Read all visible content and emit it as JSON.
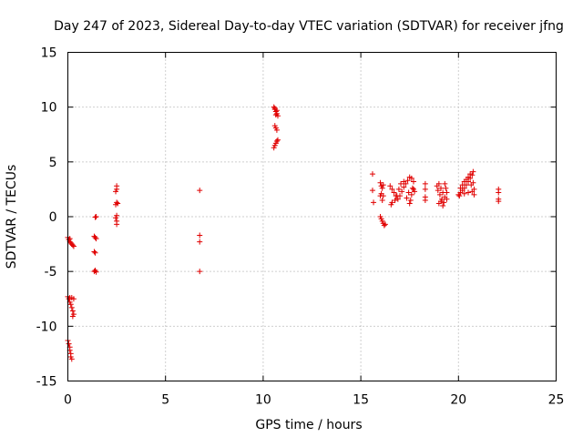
{
  "chart_data": {
    "type": "scatter",
    "title": "Day 247 of 2023, Sidereal Day-to-day VTEC variation (SDTVAR) for receiver jfng",
    "xlabel": "GPS time / hours",
    "ylabel": "SDTVAR / TECUs",
    "xlim": [
      0,
      25
    ],
    "ylim": [
      -15,
      15
    ],
    "xticks": [
      0,
      5,
      10,
      15,
      20,
      25
    ],
    "yticks": [
      -15,
      -10,
      -5,
      0,
      5,
      10,
      15
    ],
    "xtick_labels": [
      "0",
      "5",
      "10",
      "15",
      "20",
      "25"
    ],
    "ytick_labels": [
      "-15",
      "-10",
      "-5",
      "0",
      "5",
      "10",
      "15"
    ],
    "grid": true,
    "marker": "+",
    "marker_color": "#e00000",
    "series": [
      {
        "name": "SDTVAR",
        "points": [
          [
            0.0,
            -1.9
          ],
          [
            0.05,
            -2.1
          ],
          [
            0.1,
            -2.3
          ],
          [
            0.15,
            -2.4
          ],
          [
            0.2,
            -2.5
          ],
          [
            0.25,
            -2.6
          ],
          [
            0.3,
            -2.7
          ],
          [
            0.1,
            -2.0
          ],
          [
            0.0,
            -7.3
          ],
          [
            0.05,
            -7.5
          ],
          [
            0.1,
            -7.8
          ],
          [
            0.15,
            -8.0
          ],
          [
            0.2,
            -8.3
          ],
          [
            0.25,
            -8.6
          ],
          [
            0.3,
            -8.9
          ],
          [
            0.1,
            -7.4
          ],
          [
            0.2,
            -7.4
          ],
          [
            0.3,
            -7.5
          ],
          [
            0.25,
            -9.1
          ],
          [
            0.0,
            -11.3
          ],
          [
            0.05,
            -11.6
          ],
          [
            0.1,
            -11.9
          ],
          [
            0.1,
            -12.2
          ],
          [
            0.15,
            -12.5
          ],
          [
            0.15,
            -12.8
          ],
          [
            0.2,
            -13.0
          ],
          [
            1.4,
            -0.05
          ],
          [
            1.45,
            0.0
          ],
          [
            1.35,
            -1.8
          ],
          [
            1.4,
            -1.9
          ],
          [
            1.45,
            -2.0
          ],
          [
            1.35,
            -3.2
          ],
          [
            1.4,
            -3.3
          ],
          [
            1.35,
            -5.0
          ],
          [
            1.4,
            -4.9
          ],
          [
            1.45,
            -5.05
          ],
          [
            2.5,
            2.8
          ],
          [
            2.5,
            2.5
          ],
          [
            2.45,
            2.3
          ],
          [
            2.5,
            1.3
          ],
          [
            2.45,
            1.1
          ],
          [
            2.55,
            1.2
          ],
          [
            2.5,
            0.1
          ],
          [
            2.45,
            -0.1
          ],
          [
            2.5,
            -0.4
          ],
          [
            2.5,
            -0.7
          ],
          [
            6.75,
            2.4
          ],
          [
            6.75,
            -1.7
          ],
          [
            6.75,
            -2.3
          ],
          [
            6.75,
            -5.0
          ],
          [
            10.55,
            10.0
          ],
          [
            10.6,
            9.8
          ],
          [
            10.65,
            9.6
          ],
          [
            10.7,
            9.4
          ],
          [
            10.75,
            9.2
          ],
          [
            10.6,
            9.9
          ],
          [
            10.7,
            9.7
          ],
          [
            10.65,
            9.3
          ],
          [
            10.6,
            8.3
          ],
          [
            10.65,
            8.1
          ],
          [
            10.7,
            7.9
          ],
          [
            10.55,
            6.3
          ],
          [
            10.6,
            6.5
          ],
          [
            10.65,
            6.7
          ],
          [
            10.7,
            6.9
          ],
          [
            10.75,
            7.0
          ],
          [
            15.6,
            3.9
          ],
          [
            15.6,
            2.4
          ],
          [
            15.65,
            1.3
          ],
          [
            16.0,
            3.1
          ],
          [
            16.05,
            2.8
          ],
          [
            16.1,
            2.6
          ],
          [
            16.15,
            2.9
          ],
          [
            16.0,
            1.9
          ],
          [
            16.05,
            2.1
          ],
          [
            16.15,
            1.9
          ],
          [
            16.1,
            1.5
          ],
          [
            16.0,
            0.0
          ],
          [
            16.05,
            -0.2
          ],
          [
            16.1,
            -0.4
          ],
          [
            16.15,
            -0.6
          ],
          [
            16.2,
            -0.8
          ],
          [
            16.25,
            -0.7
          ],
          [
            16.5,
            2.8
          ],
          [
            16.6,
            2.5
          ],
          [
            16.7,
            2.2
          ],
          [
            16.8,
            1.9
          ],
          [
            16.9,
            1.6
          ],
          [
            17.0,
            1.9
          ],
          [
            17.1,
            2.3
          ],
          [
            17.2,
            2.7
          ],
          [
            17.3,
            3.0
          ],
          [
            17.4,
            3.3
          ],
          [
            17.5,
            3.6
          ],
          [
            17.6,
            3.5
          ],
          [
            17.7,
            3.2
          ],
          [
            16.55,
            1.1
          ],
          [
            16.6,
            1.3
          ],
          [
            16.75,
            1.5
          ],
          [
            16.85,
            1.9
          ],
          [
            16.95,
            2.5
          ],
          [
            17.05,
            3.0
          ],
          [
            17.2,
            3.2
          ],
          [
            17.5,
            1.2
          ],
          [
            17.55,
            1.5
          ],
          [
            17.6,
            2.0
          ],
          [
            17.65,
            2.6
          ],
          [
            17.7,
            2.5
          ],
          [
            17.75,
            2.3
          ],
          [
            17.35,
            1.7
          ],
          [
            17.45,
            2.2
          ],
          [
            18.3,
            3.0
          ],
          [
            18.3,
            2.5
          ],
          [
            18.3,
            1.8
          ],
          [
            18.3,
            1.5
          ],
          [
            18.9,
            2.8
          ],
          [
            19.0,
            3.0
          ],
          [
            19.1,
            2.6
          ],
          [
            19.2,
            2.2
          ],
          [
            19.3,
            1.8
          ],
          [
            19.1,
            1.4
          ],
          [
            19.0,
            1.2
          ],
          [
            19.2,
            1.0
          ],
          [
            18.95,
            2.4
          ],
          [
            19.05,
            2.0
          ],
          [
            19.15,
            1.6
          ],
          [
            19.25,
            1.3
          ],
          [
            19.3,
            3.0
          ],
          [
            19.35,
            2.6
          ],
          [
            19.4,
            2.2
          ],
          [
            19.4,
            1.6
          ],
          [
            20.0,
            2.0
          ],
          [
            20.1,
            2.2
          ],
          [
            20.2,
            2.4
          ],
          [
            20.3,
            2.6
          ],
          [
            20.4,
            2.9
          ],
          [
            20.5,
            3.2
          ],
          [
            20.6,
            3.5
          ],
          [
            20.7,
            3.8
          ],
          [
            20.75,
            4.1
          ],
          [
            20.1,
            2.6
          ],
          [
            20.2,
            2.9
          ],
          [
            20.3,
            3.2
          ],
          [
            20.4,
            3.4
          ],
          [
            20.5,
            3.6
          ],
          [
            20.6,
            3.9
          ],
          [
            20.05,
            1.9
          ],
          [
            20.3,
            2.1
          ],
          [
            20.5,
            2.2
          ],
          [
            20.7,
            2.3
          ],
          [
            20.8,
            2.5
          ],
          [
            20.65,
            2.9
          ],
          [
            20.75,
            3.1
          ],
          [
            20.8,
            2.0
          ],
          [
            22.05,
            2.5
          ],
          [
            22.05,
            2.2
          ],
          [
            22.05,
            1.6
          ],
          [
            22.05,
            1.4
          ]
        ]
      }
    ]
  }
}
